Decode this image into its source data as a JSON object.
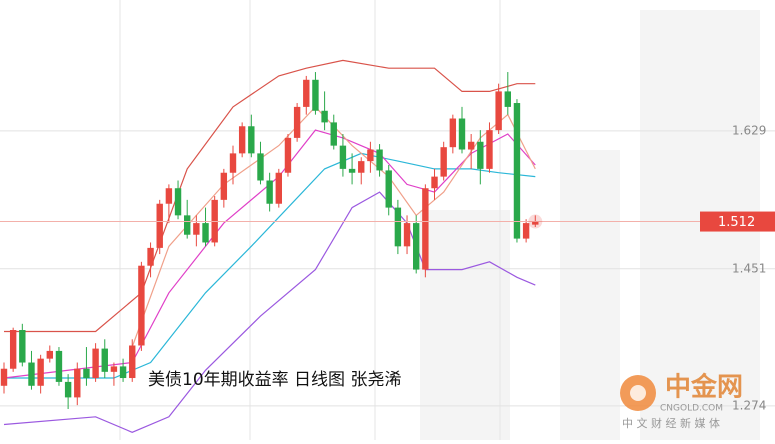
{
  "chart_data": {
    "type": "candlestick",
    "title": "美债10年期收益率  日线图  张尧浠",
    "ylim": [
      1.23,
      1.798
    ],
    "yticks": [
      1.629,
      1.451,
      1.274
    ],
    "last_value": 1.512,
    "up_color": "#e8483f",
    "down_color": "#2aa84a",
    "open": [
      1.3,
      1.322,
      1.372,
      1.33,
      1.3,
      1.335,
      1.345,
      1.305,
      1.285,
      1.322,
      1.31,
      1.348,
      1.318,
      1.325,
      1.31,
      1.352,
      1.455,
      1.478,
      1.535,
      1.555,
      1.52,
      1.495,
      1.51,
      1.485,
      1.54,
      1.575,
      1.6,
      1.635,
      1.6,
      1.565,
      1.535,
      1.575,
      1.62,
      1.66,
      1.695,
      1.655,
      1.64,
      1.61,
      1.58,
      1.575,
      1.59,
      1.605,
      1.578,
      1.53,
      1.48,
      1.51,
      1.45,
      1.555,
      1.57,
      1.608,
      1.645,
      1.605,
      1.615,
      1.58,
      1.63,
      1.68,
      1.665,
      1.49,
      1.508
    ],
    "high": [
      1.33,
      1.375,
      1.38,
      1.345,
      1.34,
      1.352,
      1.35,
      1.315,
      1.33,
      1.35,
      1.355,
      1.36,
      1.33,
      1.335,
      1.36,
      1.46,
      1.485,
      1.54,
      1.56,
      1.565,
      1.54,
      1.52,
      1.53,
      1.545,
      1.58,
      1.61,
      1.64,
      1.65,
      1.615,
      1.575,
      1.58,
      1.625,
      1.665,
      1.7,
      1.705,
      1.68,
      1.65,
      1.625,
      1.6,
      1.595,
      1.615,
      1.612,
      1.585,
      1.54,
      1.52,
      1.52,
      1.56,
      1.58,
      1.615,
      1.65,
      1.66,
      1.625,
      1.63,
      1.64,
      1.69,
      1.705,
      1.67,
      1.515,
      1.52
    ],
    "low": [
      1.29,
      1.318,
      1.325,
      1.295,
      1.29,
      1.33,
      1.3,
      1.27,
      1.275,
      1.3,
      1.305,
      1.31,
      1.3,
      1.305,
      1.305,
      1.345,
      1.44,
      1.47,
      1.51,
      1.515,
      1.49,
      1.48,
      1.48,
      1.48,
      1.53,
      1.56,
      1.595,
      1.595,
      1.56,
      1.525,
      1.53,
      1.57,
      1.615,
      1.65,
      1.65,
      1.63,
      1.605,
      1.57,
      1.56,
      1.56,
      1.575,
      1.57,
      1.52,
      1.47,
      1.47,
      1.445,
      1.44,
      1.54,
      1.565,
      1.6,
      1.6,
      1.58,
      1.56,
      1.575,
      1.625,
      1.65,
      1.485,
      1.485,
      1.505
    ],
    "close": [
      1.322,
      1.372,
      1.33,
      1.3,
      1.335,
      1.345,
      1.305,
      1.285,
      1.322,
      1.31,
      1.348,
      1.318,
      1.325,
      1.31,
      1.352,
      1.455,
      1.478,
      1.535,
      1.555,
      1.52,
      1.495,
      1.51,
      1.485,
      1.54,
      1.575,
      1.6,
      1.635,
      1.6,
      1.565,
      1.535,
      1.575,
      1.62,
      1.66,
      1.695,
      1.655,
      1.64,
      1.61,
      1.58,
      1.575,
      1.59,
      1.605,
      1.578,
      1.53,
      1.48,
      1.51,
      1.45,
      1.555,
      1.57,
      1.608,
      1.645,
      1.605,
      1.615,
      1.58,
      1.63,
      1.68,
      1.66,
      1.49,
      1.51,
      1.512
    ],
    "lines": [
      {
        "color": "#d9534a",
        "x": [
          0,
          10,
          15,
          20,
          25,
          30,
          33,
          37,
          42,
          47,
          50,
          53,
          56,
          58
        ],
        "values": [
          1.37,
          1.37,
          1.42,
          1.58,
          1.66,
          1.7,
          1.71,
          1.72,
          1.71,
          1.71,
          1.68,
          1.68,
          1.69,
          1.69
        ]
      },
      {
        "color": "#9b59e0",
        "x": [
          0,
          10,
          14,
          18,
          22,
          28,
          34,
          38,
          41,
          44,
          46,
          50,
          53,
          56,
          58
        ],
        "values": [
          1.25,
          1.26,
          1.24,
          1.26,
          1.32,
          1.39,
          1.45,
          1.53,
          1.55,
          1.51,
          1.45,
          1.45,
          1.46,
          1.44,
          1.43
        ]
      },
      {
        "color": "#2bb7d8",
        "x": [
          0,
          12,
          16,
          22,
          27,
          31,
          35,
          39,
          43,
          47,
          51,
          54,
          58
        ],
        "values": [
          1.31,
          1.31,
          1.33,
          1.42,
          1.48,
          1.53,
          1.58,
          1.6,
          1.59,
          1.58,
          1.58,
          1.575,
          1.57
        ]
      },
      {
        "color": "#e040c8",
        "x": [
          0,
          14,
          18,
          24,
          30,
          34,
          37,
          41,
          44,
          47,
          51,
          55,
          58
        ],
        "values": [
          1.31,
          1.33,
          1.42,
          1.51,
          1.57,
          1.63,
          1.62,
          1.6,
          1.56,
          1.55,
          1.6,
          1.625,
          1.585
        ]
      },
      {
        "color": "#f0a08a",
        "x": [
          14,
          18,
          24,
          30,
          34,
          38,
          42,
          45,
          48,
          52,
          55,
          58
        ],
        "values": [
          1.35,
          1.48,
          1.56,
          1.61,
          1.66,
          1.61,
          1.57,
          1.52,
          1.55,
          1.62,
          1.65,
          1.58
        ]
      }
    ]
  },
  "watermark": {
    "brand": "中金网",
    "site": "CNGOLD.COM",
    "slogan": "中 文 财 经 新 媒 体"
  }
}
